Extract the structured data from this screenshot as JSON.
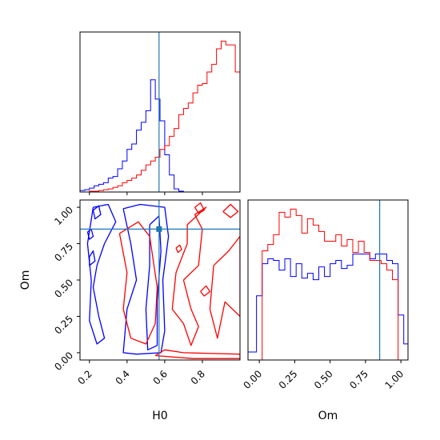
{
  "chart_data": {
    "type": "corner",
    "params": [
      "H0",
      "Om"
    ],
    "colors": {
      "series_a": "#0000ff",
      "series_b": "#ff0000",
      "truth": "#1f77b4"
    },
    "truth": {
      "H0": 0.57,
      "Om": 0.85
    },
    "panels": [
      {
        "id": "H0-marginal",
        "type": "histogram",
        "xlim": [
          0.15,
          1.0
        ],
        "yticks": false,
        "bin_edges": [
          0.15,
          0.175,
          0.2,
          0.225,
          0.25,
          0.275,
          0.3,
          0.325,
          0.35,
          0.375,
          0.4,
          0.425,
          0.45,
          0.475,
          0.5,
          0.525,
          0.55,
          0.575,
          0.6,
          0.625,
          0.65,
          0.675,
          0.7,
          0.725,
          0.75,
          0.775,
          0.8,
          0.825,
          0.85,
          0.875,
          0.9,
          0.925,
          0.95,
          0.975,
          1.0
        ],
        "series": [
          {
            "color": "#0000ff",
            "values": [
              2,
              3,
              5,
              8,
              10,
              12,
              18,
              20,
              30,
              40,
              55,
              62,
              80,
              90,
              105,
              145,
              120,
              92,
              48,
              22,
              4,
              1,
              0,
              0,
              0,
              0,
              0,
              0,
              0,
              0,
              0,
              0,
              0,
              0
            ]
          },
          {
            "color": "#ff0000",
            "values": [
              0,
              0,
              1,
              1,
              2,
              3,
              4,
              6,
              8,
              12,
              15,
              18,
              22,
              28,
              35,
              40,
              45,
              55,
              60,
              72,
              82,
              100,
              108,
              115,
              128,
              138,
              140,
              155,
              165,
              185,
              195,
              190,
              190,
              155
            ]
          }
        ]
      },
      {
        "id": "H0-Om-2d",
        "type": "contour",
        "xlim": [
          0.15,
          1.0
        ],
        "ylim": [
          -0.05,
          1.05
        ],
        "xticks": [
          "0.2",
          "0.4",
          "0.6",
          "0.8"
        ],
        "yticks": [
          "0.00",
          "0.25",
          "0.50",
          "0.75",
          "1.00"
        ],
        "xlabel": "H0",
        "ylabel": "Om",
        "series": [
          {
            "color": "#0000ff",
            "contours": [
              [
                [
                  0.38,
                  0.99
                ],
                [
                  0.47,
                  1.02
                ],
                [
                  0.6,
                  1.0
                ],
                [
                  0.62,
                  0.8
                ],
                [
                  0.59,
                  0.5
                ],
                [
                  0.6,
                  0.15
                ],
                [
                  0.58,
                  0.0
                ],
                [
                  0.45,
                  -0.01
                ],
                [
                  0.38,
                  0.0
                ],
                [
                  0.4,
                  0.3
                ],
                [
                  0.45,
                  0.5
                ],
                [
                  0.42,
                  0.75
                ],
                [
                  0.38,
                  0.99
                ]
              ],
              [
                [
                  0.52,
                  0.88
                ],
                [
                  0.57,
                  0.94
                ],
                [
                  0.58,
                  0.7
                ],
                [
                  0.56,
                  0.35
                ],
                [
                  0.56,
                  0.05
                ],
                [
                  0.51,
                  0.02
                ],
                [
                  0.5,
                  0.3
                ],
                [
                  0.52,
                  0.6
                ],
                [
                  0.52,
                  0.88
                ]
              ],
              [
                [
                  0.22,
                  1.0
                ],
                [
                  0.3,
                  1.02
                ],
                [
                  0.34,
                  0.9
                ],
                [
                  0.28,
                  0.75
                ],
                [
                  0.24,
                  0.6
                ],
                [
                  0.22,
                  0.45
                ],
                [
                  0.25,
                  0.25
                ],
                [
                  0.28,
                  0.1
                ],
                [
                  0.24,
                  0.06
                ],
                [
                  0.2,
                  0.22
                ],
                [
                  0.21,
                  0.5
                ],
                [
                  0.19,
                  0.75
                ],
                [
                  0.22,
                  1.0
                ]
              ],
              [
                [
                  0.22,
                  0.98
                ],
                [
                  0.25,
                  1.01
                ],
                [
                  0.26,
                  0.95
                ],
                [
                  0.23,
                  0.92
                ],
                [
                  0.22,
                  0.98
                ]
              ],
              [
                [
                  0.19,
                  0.83
                ],
                [
                  0.21,
                  0.85
                ],
                [
                  0.22,
                  0.8
                ],
                [
                  0.2,
                  0.78
                ],
                [
                  0.19,
                  0.83
                ]
              ],
              [
                [
                  0.2,
                  0.66
                ],
                [
                  0.22,
                  0.7
                ],
                [
                  0.23,
                  0.63
                ],
                [
                  0.2,
                  0.6
                ],
                [
                  0.2,
                  0.66
                ]
              ]
            ]
          },
          {
            "color": "#ff0000",
            "contours": [
              [
                [
                  0.55,
                  -0.02
                ],
                [
                  0.75,
                  -0.04
                ],
                [
                  1.0,
                  -0.04
                ],
                [
                  1.0,
                  -0.01
                ],
                [
                  0.7,
                  0.0
                ],
                [
                  0.6,
                  0.02
                ],
                [
                  0.55,
                  -0.02
                ]
              ],
              [
                [
                  0.36,
                  0.82
                ],
                [
                  0.46,
                  0.9
                ],
                [
                  0.52,
                  0.8
                ],
                [
                  0.56,
                  0.45
                ],
                [
                  0.55,
                  0.2
                ],
                [
                  0.5,
                  0.06
                ],
                [
                  0.42,
                  0.1
                ],
                [
                  0.38,
                  0.3
                ],
                [
                  0.4,
                  0.55
                ],
                [
                  0.36,
                  0.82
                ]
              ],
              [
                [
                  0.7,
                  0.5
                ],
                [
                  0.78,
                  0.6
                ],
                [
                  0.8,
                  0.85
                ],
                [
                  0.76,
                  0.95
                ],
                [
                  0.82,
                  1.0
                ],
                [
                  0.72,
                  0.88
                ],
                [
                  0.72,
                  0.75
                ],
                [
                  0.66,
                  0.55
                ],
                [
                  0.64,
                  0.3
                ],
                [
                  0.7,
                  0.2
                ],
                [
                  0.74,
                  0.05
                ],
                [
                  0.78,
                  0.18
                ],
                [
                  0.74,
                  0.3
                ],
                [
                  0.7,
                  0.5
                ]
              ],
              [
                [
                  0.86,
                  0.6
                ],
                [
                  0.94,
                  0.7
                ],
                [
                  1.0,
                  0.8
                ],
                [
                  1.0,
                  0.25
                ],
                [
                  0.92,
                  0.35
                ],
                [
                  0.88,
                  0.1
                ],
                [
                  0.84,
                  0.3
                ],
                [
                  0.86,
                  0.6
                ]
              ],
              [
                [
                  0.76,
                  1.0
                ],
                [
                  0.79,
                  1.03
                ],
                [
                  0.81,
                  0.98
                ],
                [
                  0.78,
                  0.96
                ],
                [
                  0.76,
                  1.0
                ]
              ],
              [
                [
                  0.66,
                  0.72
                ],
                [
                  0.68,
                  0.74
                ],
                [
                  0.69,
                  0.71
                ],
                [
                  0.67,
                  0.69
                ],
                [
                  0.66,
                  0.72
                ]
              ],
              [
                [
                  0.79,
                  0.42
                ],
                [
                  0.82,
                  0.46
                ],
                [
                  0.84,
                  0.42
                ],
                [
                  0.81,
                  0.39
                ],
                [
                  0.79,
                  0.42
                ]
              ],
              [
                [
                  0.91,
                  0.97
                ],
                [
                  0.95,
                  1.02
                ],
                [
                  0.99,
                  0.97
                ],
                [
                  0.95,
                  0.93
                ],
                [
                  0.91,
                  0.97
                ]
              ]
            ]
          }
        ]
      },
      {
        "id": "Om-marginal",
        "type": "histogram",
        "xlim": [
          -0.08,
          1.05
        ],
        "yticks": false,
        "xticks": [
          "0.00",
          "0.25",
          "0.50",
          "0.75",
          "1.00"
        ],
        "xlabel": "Om",
        "bin_edges": [
          -0.08,
          -0.02,
          0.02,
          0.06,
          0.1,
          0.14,
          0.18,
          0.22,
          0.26,
          0.3,
          0.34,
          0.38,
          0.42,
          0.46,
          0.5,
          0.54,
          0.58,
          0.62,
          0.66,
          0.7,
          0.74,
          0.78,
          0.82,
          0.86,
          0.9,
          0.94,
          0.98,
          1.02,
          1.05
        ],
        "series": [
          {
            "color": "#0000ff",
            "values": [
              5,
              40,
              60,
              63,
              62,
              56,
              63,
              52,
              60,
              51,
              54,
              50,
              58,
              52,
              60,
              62,
              57,
              59,
              66,
              66,
              66,
              63,
              66,
              66,
              62,
              60,
              28,
              10
            ]
          },
          {
            "color": "#ff0000",
            "values": [
              0,
              0,
              68,
              72,
              78,
              92,
              89,
              94,
              90,
              79,
              88,
              84,
              80,
              74,
              74,
              78,
              71,
              75,
              67,
              74,
              67,
              62,
              62,
              60,
              56,
              50,
              0,
              0
            ]
          }
        ]
      }
    ]
  }
}
